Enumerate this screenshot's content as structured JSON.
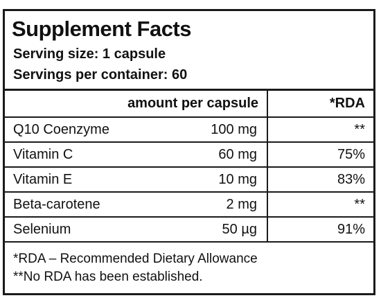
{
  "title": "Supplement Facts",
  "serving_size": "Serving size: 1 capsule",
  "servings_per_container": "Servings per container: 60",
  "columns": {
    "amount": "amount per capsule",
    "rda": "*RDA"
  },
  "rows": [
    {
      "name": "Q10 Coenzyme",
      "amount": "100 mg",
      "rda": "**"
    },
    {
      "name": "Vitamin C",
      "amount": "60 mg",
      "rda": "75%"
    },
    {
      "name": "Vitamin E",
      "amount": "10 mg",
      "rda": "83%"
    },
    {
      "name": "Beta-carotene",
      "amount": "2 mg",
      "rda": "**"
    },
    {
      "name": "Selenium",
      "amount": "50 µg",
      "rda": "91%"
    }
  ],
  "footnotes": [
    "*RDA – Recommended Dietary Allowance",
    "**No RDA has been established."
  ]
}
